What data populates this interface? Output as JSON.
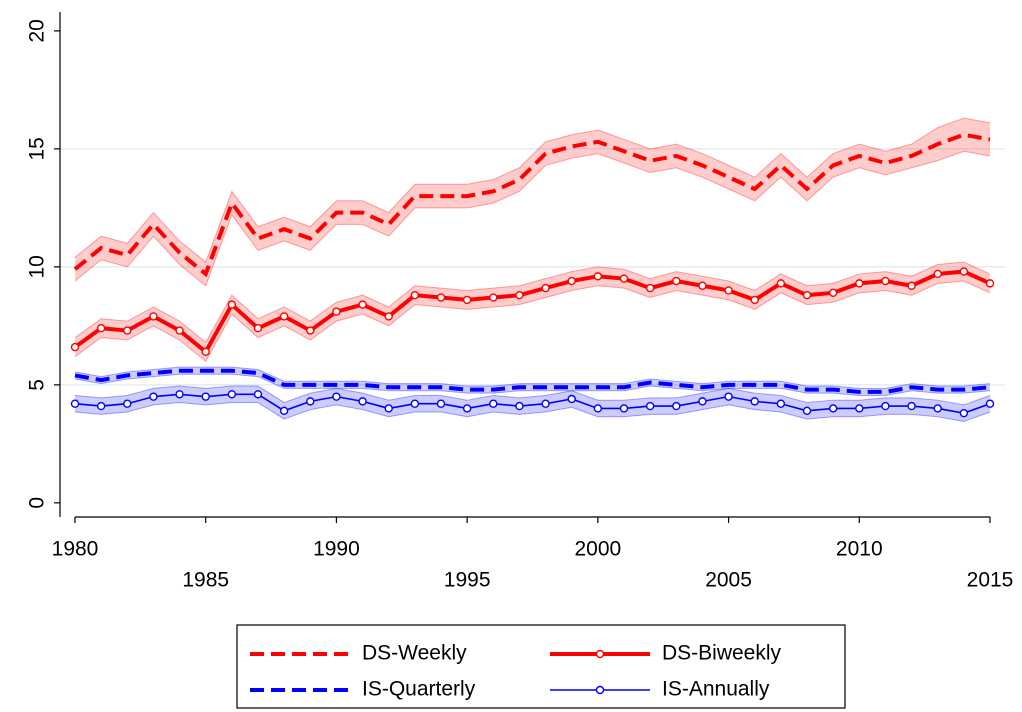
{
  "chart_data": {
    "type": "line",
    "x": [
      1980,
      1981,
      1982,
      1983,
      1984,
      1985,
      1986,
      1987,
      1988,
      1989,
      1990,
      1991,
      1992,
      1993,
      1994,
      1995,
      1996,
      1997,
      1998,
      1999,
      2000,
      2001,
      2002,
      2003,
      2004,
      2005,
      2006,
      2007,
      2008,
      2009,
      2010,
      2011,
      2012,
      2013,
      2014,
      2015
    ],
    "xlim": [
      1980,
      2015
    ],
    "xticks": [
      1980,
      1985,
      1990,
      1995,
      2000,
      2005,
      2010,
      2015
    ],
    "ylim": [
      -0.6,
      20.8
    ],
    "yticks": [
      0,
      5,
      10,
      15,
      20
    ],
    "grid": true,
    "series": [
      {
        "name": "DS-Weekly",
        "color": "#ff0000",
        "dashed": true,
        "marker": false,
        "width": 4,
        "values": [
          9.9,
          10.8,
          10.5,
          11.8,
          10.6,
          9.7,
          12.7,
          11.2,
          11.6,
          11.2,
          12.3,
          12.3,
          11.8,
          13.0,
          13.0,
          13.0,
          13.2,
          13.7,
          14.8,
          15.1,
          15.3,
          14.9,
          14.5,
          14.7,
          14.3,
          13.8,
          13.3,
          14.3,
          13.3,
          14.3,
          14.7,
          14.4,
          14.7,
          15.2,
          15.6,
          15.4
        ],
        "lower": [
          9.4,
          10.3,
          10.0,
          11.3,
          10.1,
          9.2,
          12.2,
          10.7,
          11.1,
          10.7,
          11.8,
          11.8,
          11.3,
          12.5,
          12.5,
          12.5,
          12.7,
          13.2,
          14.3,
          14.6,
          14.8,
          14.4,
          14.0,
          14.2,
          13.8,
          13.3,
          12.8,
          13.8,
          12.8,
          13.8,
          14.2,
          13.9,
          14.2,
          14.5,
          14.9,
          14.7
        ],
        "upper": [
          10.4,
          11.3,
          11.0,
          12.3,
          11.1,
          10.2,
          13.2,
          11.7,
          12.1,
          11.7,
          12.8,
          12.8,
          12.3,
          13.5,
          13.5,
          13.5,
          13.7,
          14.2,
          15.3,
          15.6,
          15.8,
          15.4,
          15.0,
          15.2,
          14.8,
          14.3,
          13.8,
          14.8,
          13.8,
          14.8,
          15.2,
          14.9,
          15.2,
          15.9,
          16.3,
          16.1
        ]
      },
      {
        "name": "DS-Biweekly",
        "color": "#ff0000",
        "dashed": false,
        "marker": true,
        "width": 4,
        "values": [
          6.6,
          7.4,
          7.3,
          7.9,
          7.3,
          6.4,
          8.4,
          7.4,
          7.9,
          7.3,
          8.1,
          8.4,
          7.9,
          8.8,
          8.7,
          8.6,
          8.7,
          8.8,
          9.1,
          9.4,
          9.6,
          9.5,
          9.1,
          9.4,
          9.2,
          9.0,
          8.6,
          9.3,
          8.8,
          8.9,
          9.3,
          9.4,
          9.2,
          9.7,
          9.8,
          9.3
        ],
        "lower": [
          6.2,
          7.0,
          6.9,
          7.5,
          6.9,
          6.0,
          8.0,
          7.0,
          7.5,
          6.9,
          7.7,
          8.0,
          7.5,
          8.4,
          8.3,
          8.2,
          8.3,
          8.4,
          8.7,
          9.0,
          9.2,
          9.1,
          8.7,
          9.0,
          8.8,
          8.6,
          8.2,
          8.9,
          8.4,
          8.5,
          8.9,
          9.0,
          8.8,
          9.3,
          9.4,
          8.9
        ],
        "upper": [
          7.0,
          7.8,
          7.7,
          8.3,
          7.7,
          6.8,
          8.8,
          7.8,
          8.3,
          7.7,
          8.5,
          8.8,
          8.3,
          9.2,
          9.1,
          9.0,
          9.1,
          9.2,
          9.5,
          9.8,
          10.0,
          9.9,
          9.5,
          9.8,
          9.6,
          9.4,
          9.0,
          9.7,
          9.2,
          9.3,
          9.7,
          9.8,
          9.6,
          10.1,
          10.2,
          9.7
        ]
      },
      {
        "name": "IS-Quarterly",
        "color": "#0000ff",
        "dashed": true,
        "marker": false,
        "width": 4,
        "values": [
          5.4,
          5.2,
          5.4,
          5.5,
          5.6,
          5.6,
          5.6,
          5.5,
          5.0,
          5.0,
          5.0,
          5.0,
          4.9,
          4.9,
          4.9,
          4.8,
          4.8,
          4.9,
          4.9,
          4.9,
          4.9,
          4.9,
          5.1,
          5.0,
          4.9,
          5.0,
          5.0,
          5.0,
          4.8,
          4.8,
          4.7,
          4.7,
          4.9,
          4.8,
          4.8,
          4.9
        ],
        "lower": [
          5.25,
          5.05,
          5.25,
          5.35,
          5.45,
          5.45,
          5.45,
          5.35,
          4.85,
          4.85,
          4.85,
          4.85,
          4.75,
          4.75,
          4.75,
          4.65,
          4.65,
          4.75,
          4.75,
          4.75,
          4.75,
          4.75,
          4.95,
          4.85,
          4.75,
          4.85,
          4.85,
          4.85,
          4.65,
          4.65,
          4.55,
          4.55,
          4.75,
          4.65,
          4.65,
          4.75
        ],
        "upper": [
          5.55,
          5.35,
          5.55,
          5.65,
          5.75,
          5.75,
          5.75,
          5.65,
          5.15,
          5.15,
          5.15,
          5.15,
          5.05,
          5.05,
          5.05,
          4.95,
          4.95,
          5.05,
          5.05,
          5.05,
          5.05,
          5.05,
          5.25,
          5.15,
          5.05,
          5.15,
          5.15,
          5.15,
          4.95,
          4.95,
          4.85,
          4.85,
          5.05,
          4.95,
          4.95,
          5.05
        ]
      },
      {
        "name": "IS-Annually",
        "color": "#0000ff",
        "dashed": false,
        "marker": true,
        "width": 1.6,
        "values": [
          4.2,
          4.1,
          4.2,
          4.5,
          4.6,
          4.5,
          4.6,
          4.6,
          3.9,
          4.3,
          4.5,
          4.3,
          4.0,
          4.2,
          4.2,
          4.0,
          4.2,
          4.1,
          4.2,
          4.4,
          4.0,
          4.0,
          4.1,
          4.1,
          4.3,
          4.5,
          4.3,
          4.2,
          3.9,
          4.0,
          4.0,
          4.1,
          4.1,
          4.0,
          3.8,
          4.2
        ],
        "lower": [
          3.85,
          3.75,
          3.85,
          4.15,
          4.25,
          4.15,
          4.25,
          4.25,
          3.55,
          3.95,
          4.15,
          3.95,
          3.65,
          3.85,
          3.85,
          3.65,
          3.85,
          3.75,
          3.85,
          4.05,
          3.65,
          3.65,
          3.75,
          3.75,
          3.95,
          4.15,
          3.95,
          3.85,
          3.55,
          3.65,
          3.65,
          3.75,
          3.75,
          3.65,
          3.45,
          3.85
        ],
        "upper": [
          4.55,
          4.45,
          4.55,
          4.85,
          4.95,
          4.85,
          4.95,
          4.95,
          4.25,
          4.65,
          4.85,
          4.65,
          4.35,
          4.55,
          4.55,
          4.35,
          4.55,
          4.45,
          4.55,
          4.75,
          4.35,
          4.35,
          4.45,
          4.45,
          4.65,
          4.85,
          4.65,
          4.55,
          4.25,
          4.35,
          4.35,
          4.45,
          4.45,
          4.35,
          4.15,
          4.55
        ]
      }
    ]
  }
}
